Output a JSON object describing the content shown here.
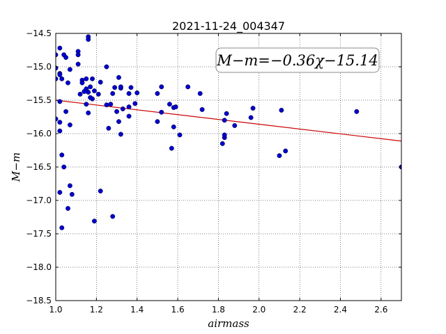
{
  "chart_data": {
    "type": "scatter",
    "title": "2021-11-24_004347",
    "xlabel": "airmass",
    "ylabel": "M−m",
    "xlim": [
      1.0,
      2.7
    ],
    "ylim": [
      -18.5,
      -14.5
    ],
    "x_ticks": [
      1.0,
      1.2,
      1.4,
      1.6,
      1.8,
      2.0,
      2.2,
      2.4,
      2.6
    ],
    "x_tick_labels": [
      "1.0",
      "1.2",
      "1.4",
      "1.6",
      "1.8",
      "2.0",
      "2.2",
      "2.4",
      "2.6"
    ],
    "y_ticks": [
      -14.5,
      -15.0,
      -15.5,
      -16.0,
      -16.5,
      -17.0,
      -17.5,
      -18.0,
      -18.5
    ],
    "y_tick_labels": [
      "−14.5",
      "−15.0",
      "−15.5",
      "−16.0",
      "−16.5",
      "−17.0",
      "−17.5",
      "−18.0",
      "−18.5"
    ],
    "grid": true,
    "annotation": "M−m=−0.36χ−15.14",
    "colors": {
      "points": "#0000cc",
      "fit_line": "#cc0000"
    },
    "fit_line": {
      "slope": -0.36,
      "intercept": -15.14
    },
    "points": [
      [
        1.0,
        -14.82
      ],
      [
        1.0,
        -15.02
      ],
      [
        1.0,
        -15.18
      ],
      [
        1.0,
        -15.78
      ],
      [
        1.02,
        -14.72
      ],
      [
        1.02,
        -15.1
      ],
      [
        1.02,
        -15.12
      ],
      [
        1.02,
        -15.52
      ],
      [
        1.02,
        -15.83
      ],
      [
        1.02,
        -15.96
      ],
      [
        1.02,
        -16.88
      ],
      [
        1.03,
        -15.18
      ],
      [
        1.03,
        -16.32
      ],
      [
        1.03,
        -17.41
      ],
      [
        1.04,
        -14.82
      ],
      [
        1.04,
        -16.5
      ],
      [
        1.05,
        -14.86
      ],
      [
        1.05,
        -15.67
      ],
      [
        1.06,
        -15.24
      ],
      [
        1.06,
        -17.12
      ],
      [
        1.07,
        -16.78
      ],
      [
        1.07,
        -15.04
      ],
      [
        1.07,
        -15.87
      ],
      [
        1.08,
        -16.91
      ],
      [
        1.11,
        -14.77
      ],
      [
        1.11,
        -14.82
      ],
      [
        1.11,
        -14.96
      ],
      [
        1.12,
        -15.41
      ],
      [
        1.13,
        -15.2
      ],
      [
        1.13,
        -15.24
      ],
      [
        1.14,
        -15.37
      ],
      [
        1.15,
        -15.33
      ],
      [
        1.15,
        -15.18
      ],
      [
        1.15,
        -15.56
      ],
      [
        1.16,
        -15.69
      ],
      [
        1.16,
        -15.38
      ],
      [
        1.16,
        -14.55
      ],
      [
        1.16,
        -14.59
      ],
      [
        1.17,
        -15.46
      ],
      [
        1.17,
        -15.3
      ],
      [
        1.18,
        -15.18
      ],
      [
        1.18,
        -15.48
      ],
      [
        1.19,
        -15.36
      ],
      [
        1.19,
        -17.31
      ],
      [
        1.21,
        -15.41
      ],
      [
        1.22,
        -15.23
      ],
      [
        1.22,
        -16.86
      ],
      [
        1.25,
        -15.0
      ],
      [
        1.25,
        -15.57
      ],
      [
        1.26,
        -15.92
      ],
      [
        1.27,
        -15.56
      ],
      [
        1.28,
        -15.4
      ],
      [
        1.28,
        -17.24
      ],
      [
        1.29,
        -15.31
      ],
      [
        1.3,
        -15.67
      ],
      [
        1.31,
        -15.16
      ],
      [
        1.31,
        -15.82
      ],
      [
        1.32,
        -15.32
      ],
      [
        1.32,
        -15.3
      ],
      [
        1.32,
        -16.01
      ],
      [
        1.33,
        -15.63
      ],
      [
        1.36,
        -15.6
      ],
      [
        1.36,
        -15.74
      ],
      [
        1.36,
        -15.4
      ],
      [
        1.37,
        -15.31
      ],
      [
        1.39,
        -15.55
      ],
      [
        1.4,
        -15.39
      ],
      [
        1.5,
        -15.4
      ],
      [
        1.5,
        -15.82
      ],
      [
        1.52,
        -15.3
      ],
      [
        1.52,
        -15.68
      ],
      [
        1.56,
        -15.56
      ],
      [
        1.57,
        -16.22
      ],
      [
        1.58,
        -15.61
      ],
      [
        1.58,
        -15.9
      ],
      [
        1.59,
        -15.6
      ],
      [
        1.61,
        -16.02
      ],
      [
        1.65,
        -15.3
      ],
      [
        1.71,
        -15.4
      ],
      [
        1.72,
        -15.64
      ],
      [
        1.82,
        -16.15
      ],
      [
        1.83,
        -15.8
      ],
      [
        1.83,
        -16.06
      ],
      [
        1.83,
        -16.02
      ],
      [
        1.84,
        -15.7
      ],
      [
        1.88,
        -15.88
      ],
      [
        1.96,
        -15.76
      ],
      [
        1.97,
        -15.62
      ],
      [
        2.1,
        -16.33
      ],
      [
        2.11,
        -15.65
      ],
      [
        2.13,
        -16.26
      ],
      [
        2.48,
        -15.67
      ],
      [
        2.7,
        -16.5
      ]
    ]
  }
}
